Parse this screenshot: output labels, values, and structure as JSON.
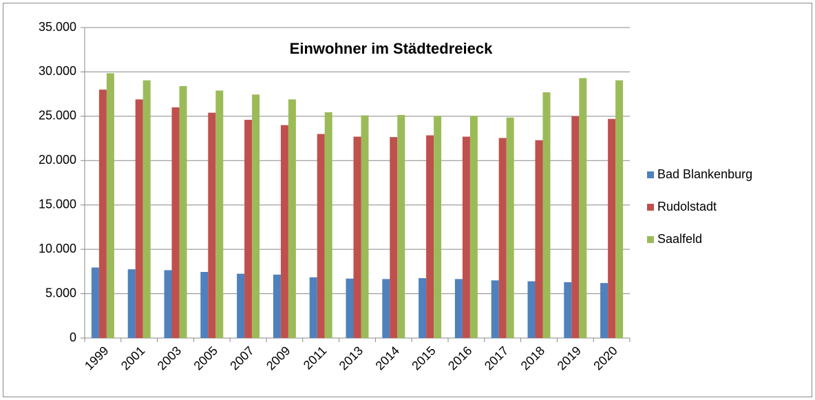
{
  "chart_data": {
    "type": "bar",
    "title": "Einwohner im Städtedreieck",
    "categories": [
      "1999",
      "2001",
      "2003",
      "2005",
      "2007",
      "2009",
      "2011",
      "2013",
      "2014",
      "2015",
      "2016",
      "2017",
      "2018",
      "2019",
      "2020"
    ],
    "series": [
      {
        "name": "Bad Blankenburg",
        "color": "#4f81bd",
        "values": [
          7950,
          7750,
          7650,
          7450,
          7250,
          7150,
          6850,
          6700,
          6650,
          6750,
          6650,
          6500,
          6400,
          6300,
          6200
        ]
      },
      {
        "name": "Rudolstadt",
        "color": "#c0504d",
        "values": [
          28000,
          26900,
          26000,
          25400,
          24600,
          24000,
          23000,
          22700,
          22650,
          22850,
          22700,
          22550,
          22300,
          25000,
          24700
        ]
      },
      {
        "name": "Saalfeld",
        "color": "#9bbb59",
        "values": [
          29850,
          29050,
          28400,
          27900,
          27450,
          26900,
          25450,
          25100,
          25150,
          25050,
          25050,
          24850,
          27700,
          29300,
          29050
        ]
      }
    ],
    "ylim": [
      0,
      35000
    ],
    "yticks": [
      0,
      {
        "value": 5000,
        "label": "5.000"
      },
      {
        "value": 10000,
        "label": "10.000"
      },
      {
        "value": 15000,
        "label": "15.000"
      },
      {
        "value": 20000,
        "label": "20.000"
      },
      {
        "value": 25000,
        "label": "25.000"
      },
      {
        "value": 30000,
        "label": "30.000"
      },
      {
        "value": 35000,
        "label": "35.000"
      }
    ],
    "grid": true,
    "legend": "right"
  }
}
